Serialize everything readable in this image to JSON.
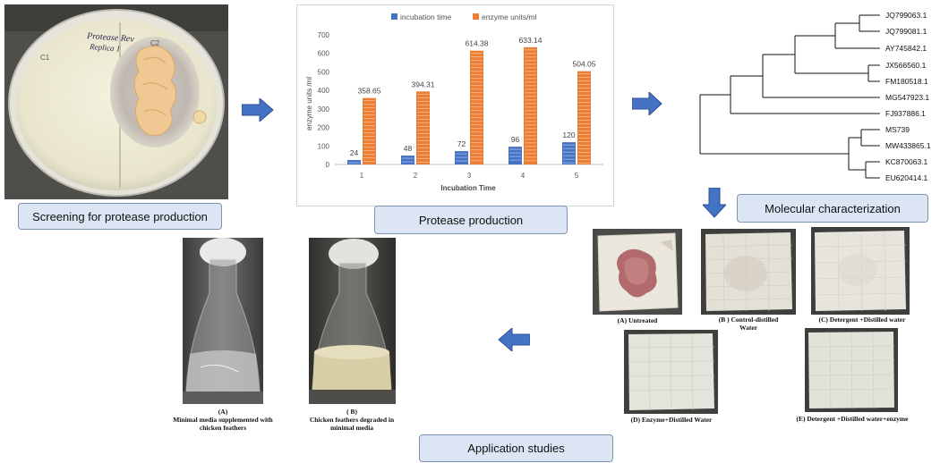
{
  "labels": {
    "screening": "Screening for protease production",
    "production": "Protease production",
    "molecular": "Molecular characterization",
    "application": "Application studies"
  },
  "plate_text": {
    "handwriting_line1": "Protease Rev",
    "handwriting_line2": "Replica 1",
    "mark_left": "C1",
    "mark_right": "C2"
  },
  "chart_data": {
    "type": "bar",
    "title": "",
    "categories": [
      "1",
      "2",
      "3",
      "4",
      "5"
    ],
    "series": [
      {
        "name": "incubation time",
        "values": [
          24,
          48,
          72,
          96,
          120
        ],
        "color": "#4472c4"
      },
      {
        "name": "enzyme units/ml",
        "values": [
          358.65,
          394.31,
          614.38,
          633.14,
          504.05
        ],
        "color": "#ed7d31"
      }
    ],
    "data_labels": {
      "incubation time": [
        "24",
        "48",
        "72",
        "96",
        "120"
      ],
      "enzyme units/ml": [
        "358.65",
        "394.31",
        "614.38",
        "633.14",
        "504.05"
      ]
    },
    "xlabel": "Incubation Time",
    "ylabel": "enzyme units /ml",
    "ylim": [
      0,
      700
    ],
    "yticks": [
      "0",
      "100",
      "200",
      "300",
      "400",
      "500",
      "600",
      "700"
    ],
    "legend_position": "top-center",
    "grid": false
  },
  "tree": {
    "taxa": [
      "JQ799063.1",
      "JQ799081.1",
      "AY745842.1",
      "JX566560.1",
      "FM180518.1",
      "MG547923.1",
      "FJ937886.1",
      "MS739",
      "MW433865.1",
      "KC870063.1",
      "EU620414.1"
    ]
  },
  "fabrics": {
    "a": "(A)     Untreated",
    "b_line1": "(B ) Control-distilled",
    "b_line2": "Water",
    "c": "(C) Detergent +Distilled water",
    "d": "(D) Enzyme+Distilled Water",
    "e": "(E) Detergent +Distilled water+enzyme"
  },
  "flasks": {
    "a_line1": "(A)",
    "a_line2": "Minimal media supplemented with",
    "a_line3": "chicken feathers",
    "b_line1": "( B)",
    "b_line2": "Chicken feathers degraded in",
    "b_line3": "minimal media"
  },
  "colors": {
    "box_fill": "#dbe5f3",
    "box_border": "#7d93b5",
    "arrow": "#4472c4",
    "bar_blue": "#4472c4",
    "bar_orange": "#ed7d31"
  }
}
